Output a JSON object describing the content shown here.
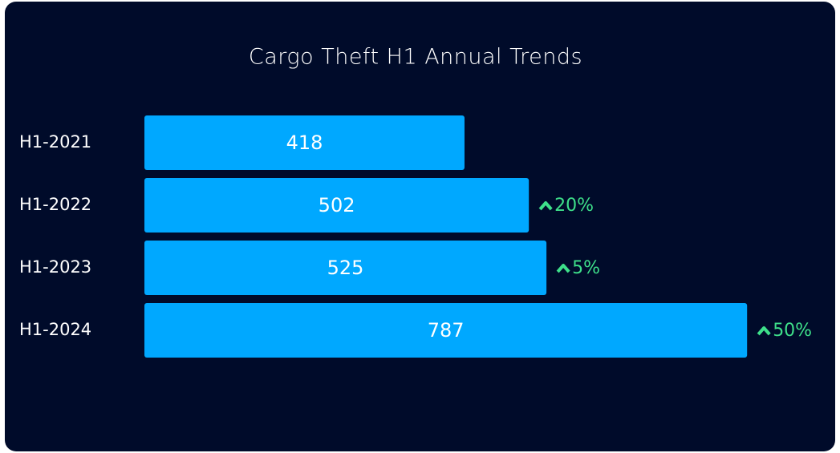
{
  "chart_data": {
    "type": "bar",
    "orientation": "horizontal",
    "title": "Cargo Theft H1 Annual Trends",
    "categories": [
      "H1-2021",
      "H1-2022",
      "H1-2023",
      "H1-2024"
    ],
    "values": [
      418,
      502,
      525,
      787
    ],
    "change_labels": [
      null,
      "20%",
      "5%",
      "50%"
    ],
    "color": "#00a8ff",
    "change_color": "#3ee08a",
    "xlim": [
      0,
      800
    ]
  }
}
